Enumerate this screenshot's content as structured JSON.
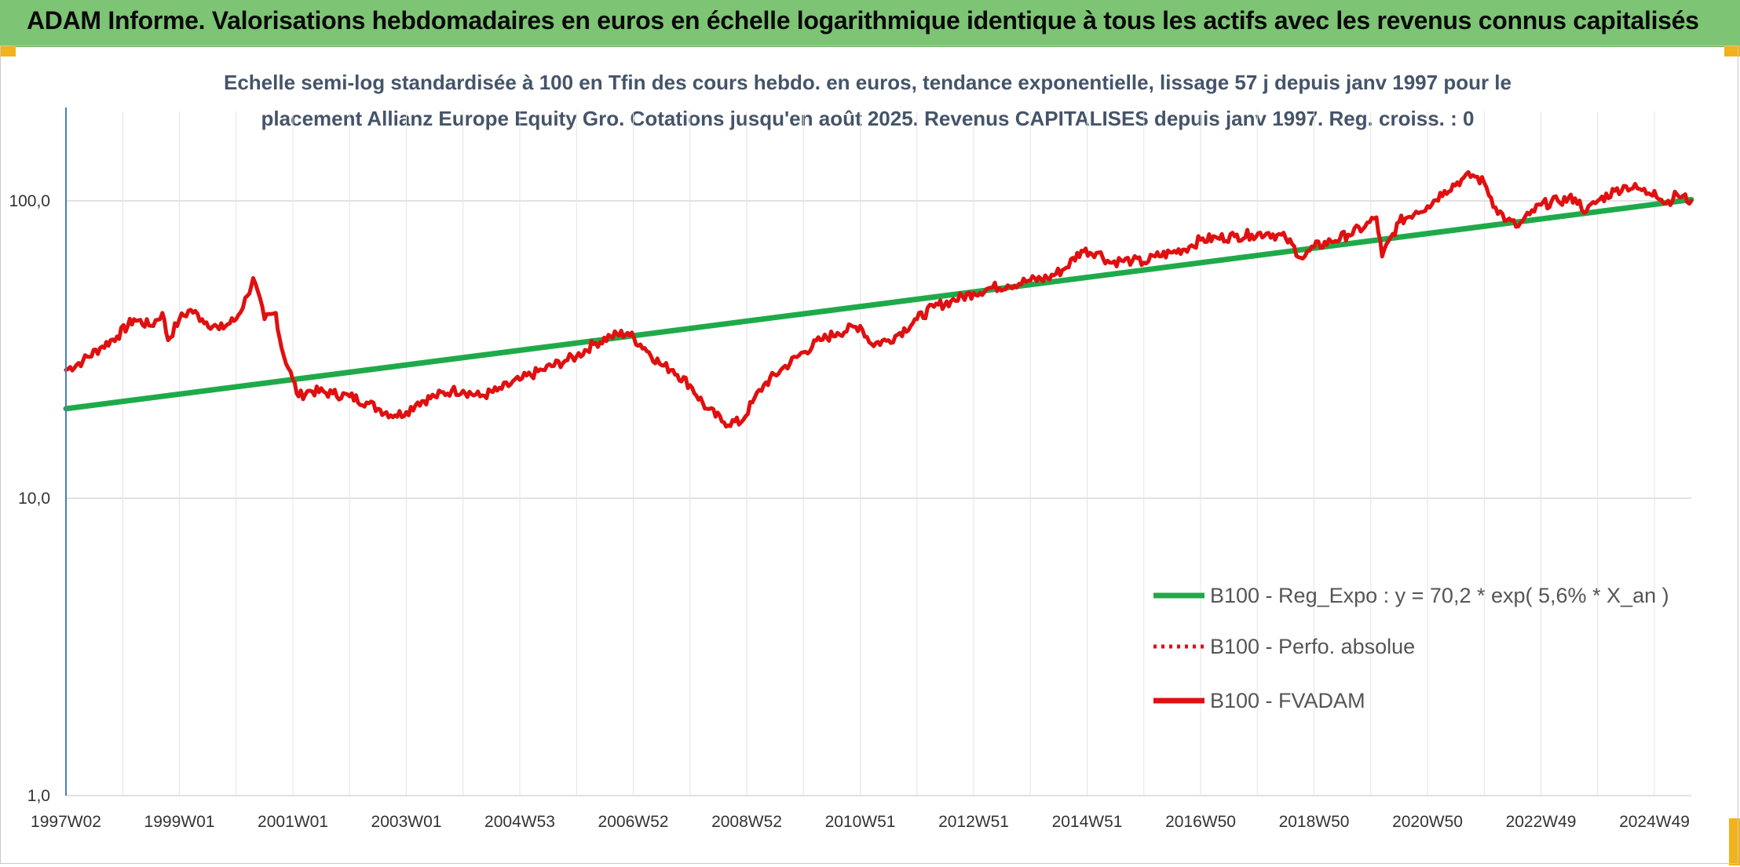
{
  "header": {
    "title": "ADAM Informe. Valorisations hebdomadaires en euros en échelle logarithmique identique à tous les actifs avec les revenus connus capitalisés",
    "background": "#7dc474",
    "accent": "#f2b21b"
  },
  "chart_data": {
    "type": "line",
    "title_line1": "Echelle semi-log standardisée à 100 en Tfin des cours hebdo. en euros, tendance exponentielle, lissage 57 j depuis janv 1997 pour le",
    "title_line2": "placement Allianz Europe Equity Gro. Cotations jusqu'en août 2025. Revenus CAPITALISES depuis janv 1997. Reg. croiss. : 0",
    "y_scale": "log",
    "ylim": [
      1,
      200
    ],
    "y_ticks": [
      1,
      10,
      100
    ],
    "y_tick_labels": [
      "1,0",
      "10,0",
      "100,0"
    ],
    "x_range": [
      1997.0,
      2025.65
    ],
    "x_tick_labels": [
      "1997W02",
      "1999W01",
      "2001W01",
      "2003W01",
      "2004W53",
      "2006W52",
      "2008W52",
      "2010W51",
      "2012W51",
      "2014W51",
      "2016W50",
      "2018W50",
      "2020W50",
      "2022W49",
      "2024W49"
    ],
    "x_tick_years": [
      1997.0,
      1999.0,
      2001.0,
      2003.0,
      2005.0,
      2007.0,
      2009.0,
      2011.0,
      2013.0,
      2015.0,
      2017.0,
      2019.0,
      2021.0,
      2023.0,
      2025.0
    ],
    "grid": true,
    "legend_position": "bottom-right",
    "series": [
      {
        "name": "B100 - Reg_Expo : y = 70,2 * exp( 5,6% *  X_an )",
        "color": "#1faa4a",
        "style": "solid",
        "x": [
          1997.0,
          2025.65
        ],
        "y": [
          20.0,
          101.0
        ]
      },
      {
        "name": "B100 - Perfo. absolue",
        "color": "#e01010",
        "style": "dotted",
        "x": [],
        "y": []
      },
      {
        "name": "B100 - FVADAM",
        "color": "#e01010",
        "style": "solid",
        "x": [
          1997.0,
          1997.3,
          1997.6,
          1997.9,
          1998.2,
          1998.5,
          1998.7,
          1998.8,
          1999.0,
          1999.2,
          1999.4,
          1999.7,
          2000.0,
          2000.2,
          2000.3,
          2000.5,
          2000.7,
          2000.8,
          2001.0,
          2001.1,
          2001.3,
          2001.7,
          2002.0,
          2002.3,
          2002.5,
          2002.8,
          2003.0,
          2003.2,
          2003.5,
          2003.8,
          2004.0,
          2004.3,
          2004.6,
          2005.0,
          2005.4,
          2005.8,
          2006.0,
          2006.3,
          2006.6,
          2006.9,
          2007.2,
          2007.5,
          2007.7,
          2008.0,
          2008.3,
          2008.6,
          2008.9,
          2009.1,
          2009.3,
          2009.6,
          2010.0,
          2010.3,
          2010.6,
          2011.0,
          2011.2,
          2011.5,
          2011.7,
          2012.0,
          2012.3,
          2012.6,
          2013.0,
          2013.3,
          2013.6,
          2014.0,
          2014.3,
          2014.6,
          2014.9,
          2015.2,
          2015.4,
          2015.6,
          2015.8,
          2016.0,
          2016.2,
          2016.5,
          2016.8,
          2017.0,
          2017.3,
          2017.6,
          2017.9,
          2018.2,
          2018.5,
          2018.8,
          2019.0,
          2019.3,
          2019.6,
          2019.9,
          2020.1,
          2020.2,
          2020.5,
          2020.8,
          2021.0,
          2021.3,
          2021.6,
          2021.8,
          2022.0,
          2022.2,
          2022.4,
          2022.6,
          2022.8,
          2023.0,
          2023.3,
          2023.6,
          2023.8,
          2024.0,
          2024.3,
          2024.5,
          2024.7,
          2024.9,
          2025.0,
          2025.2,
          2025.4,
          2025.65
        ],
        "y": [
          27,
          29,
          32,
          35,
          40,
          38,
          42,
          34,
          40,
          43,
          40,
          37,
          40,
          48,
          55,
          40,
          42,
          32,
          25,
          22,
          23,
          22.5,
          22,
          21,
          20,
          19,
          19.5,
          21,
          22,
          23,
          23,
          22,
          23,
          25,
          27,
          29,
          30,
          33,
          35,
          36,
          32,
          28,
          27,
          24,
          20,
          18,
          18,
          21,
          24,
          27,
          31,
          34,
          36,
          38,
          33,
          34,
          36,
          40,
          44,
          46,
          49,
          51,
          52,
          54,
          55,
          59,
          68,
          67,
          62,
          63,
          63,
          62,
          65,
          67,
          70,
          74,
          75,
          76,
          77,
          78,
          75,
          64,
          70,
          73,
          77,
          82,
          88,
          65,
          85,
          92,
          96,
          108,
          118,
          122,
          115,
          95,
          86,
          82,
          90,
          97,
          100,
          102,
          92,
          100,
          108,
          112,
          110,
          106,
          108,
          98,
          105,
          100
        ]
      }
    ]
  }
}
